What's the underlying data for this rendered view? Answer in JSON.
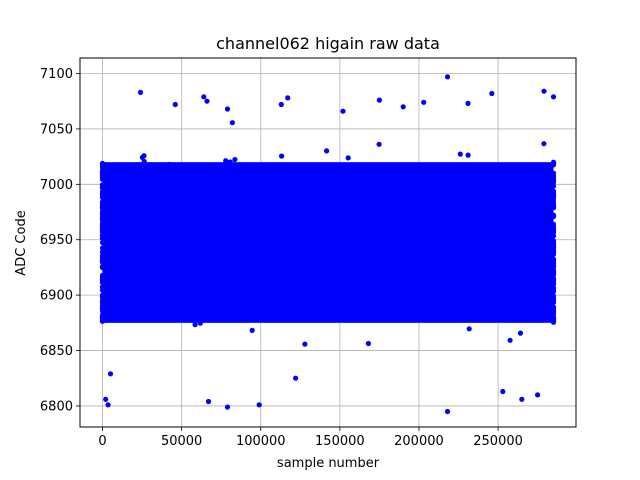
{
  "chart_data": {
    "type": "scatter",
    "title": "channel062 higain raw data",
    "xlabel": "sample number",
    "ylabel": "ADC Code",
    "xlim": [
      -14250,
      299250
    ],
    "ylim": [
      6781,
      7114
    ],
    "xticks": [
      0,
      50000,
      100000,
      150000,
      200000,
      250000
    ],
    "yticks": [
      6800,
      6850,
      6900,
      6950,
      7000,
      7050,
      7100
    ],
    "xtick_labels": [
      "0",
      "50000",
      "100000",
      "150000",
      "200000",
      "250000"
    ],
    "ytick_labels": [
      "6800",
      "6850",
      "6900",
      "6950",
      "7000",
      "7050",
      "7100"
    ],
    "grid": true,
    "marker_color": "#0000ff",
    "series": [
      {
        "x_range": [
          0,
          285000
        ],
        "core_band": [
          6875,
          7020
        ],
        "mean": 6950,
        "outliers": [
          {
            "x": 2000,
            "y": 6806
          },
          {
            "x": 3500,
            "y": 6801
          },
          {
            "x": 24000,
            "y": 7083
          },
          {
            "x": 46000,
            "y": 7072
          },
          {
            "x": 64000,
            "y": 7079
          },
          {
            "x": 66000,
            "y": 7075
          },
          {
            "x": 79000,
            "y": 7068
          },
          {
            "x": 79000,
            "y": 6799
          },
          {
            "x": 99000,
            "y": 6801
          },
          {
            "x": 113000,
            "y": 7072
          },
          {
            "x": 117000,
            "y": 7078
          },
          {
            "x": 122000,
            "y": 6825
          },
          {
            "x": 152000,
            "y": 7066
          },
          {
            "x": 175000,
            "y": 7076
          },
          {
            "x": 190000,
            "y": 7070
          },
          {
            "x": 203000,
            "y": 7074
          },
          {
            "x": 218000,
            "y": 7097
          },
          {
            "x": 218000,
            "y": 6795
          },
          {
            "x": 231000,
            "y": 7073
          },
          {
            "x": 246000,
            "y": 7082
          },
          {
            "x": 279000,
            "y": 7084
          },
          {
            "x": 285000,
            "y": 7079
          },
          {
            "x": 265000,
            "y": 6806
          },
          {
            "x": 275000,
            "y": 6810
          },
          {
            "x": 67000,
            "y": 6804
          },
          {
            "x": 253000,
            "y": 6813
          },
          {
            "x": 5000,
            "y": 6829
          }
        ]
      }
    ]
  }
}
